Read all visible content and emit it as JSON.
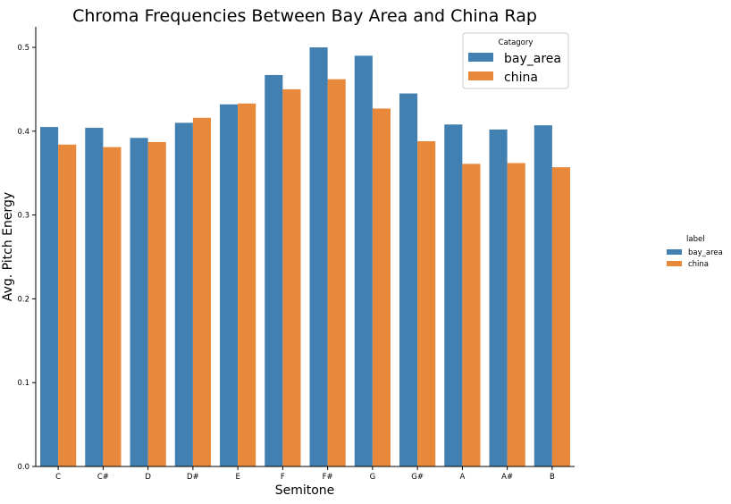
{
  "chart_data": {
    "type": "bar",
    "title": "Chroma Frequencies Between Bay Area and China Rap",
    "xlabel": "Semitone",
    "ylabel": "Avg. Pitch Energy",
    "categories": [
      "C",
      "C#",
      "D",
      "D#",
      "E",
      "F",
      "F#",
      "G",
      "G#",
      "A",
      "A#",
      "B"
    ],
    "ylim": [
      0,
      0.525
    ],
    "yticks": [
      "0.0",
      "0.1",
      "0.2",
      "0.3",
      "0.4",
      "0.5"
    ],
    "series": [
      {
        "name": "bay_area",
        "color": "#4180b0",
        "values": [
          0.405,
          0.404,
          0.392,
          0.41,
          0.432,
          0.467,
          0.5,
          0.49,
          0.445,
          0.408,
          0.402,
          0.407
        ]
      },
      {
        "name": "china",
        "color": "#e8883a",
        "values": [
          0.384,
          0.381,
          0.387,
          0.416,
          0.433,
          0.45,
          0.462,
          0.427,
          0.388,
          0.361,
          0.362,
          0.357
        ]
      }
    ],
    "legend_inner": {
      "title": "Catagory",
      "position": "top-right"
    },
    "legend_outer": {
      "title": "label",
      "position": "right"
    },
    "grid": false
  }
}
